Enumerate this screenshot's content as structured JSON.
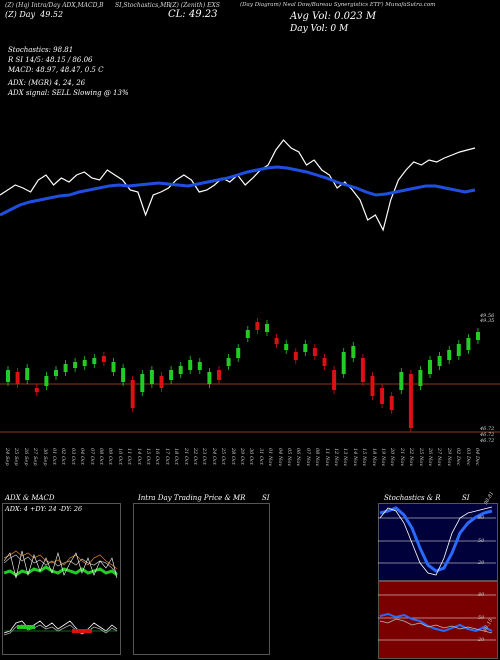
{
  "header": {
    "top_line": [
      "(Z) (Hq) Intra/Day ADX,MACD,B",
      "SI,Stochastics,MR",
      "(Z) (Zenith) EXS",
      "(Day Diagram) Neal Dow/Bureau Synergistics ETF) MunafaSutra.com"
    ],
    "daily_label": "(Z) Day",
    "daily_value": "49.52",
    "close_label": "CL: 49.23",
    "avg_vol": "Avg Vol: 0.023  M",
    "day_vol": "Day Vol: 0   M"
  },
  "indicators": {
    "stoch": "Stochastics: 98.81",
    "rsi": "R        SI 14/5: 48.15 / 86.06",
    "macd": "MACD: 48.97, 48.47, 0.5 C",
    "adx": "ADX:                    (MGR) 4, 24, 26",
    "signal": "ADX  signal: SELL Slowing @ 13%"
  },
  "price_axis": {
    "top": "49.56",
    "top2": "49.35",
    "bottom": "46.72",
    "bottom2": "46.72",
    "bottom3": "46.72"
  },
  "dates": [
    "24 Sep",
    "25 Sep",
    "26 Sep",
    "27 Sep",
    "30 Sep",
    "01 Oct",
    "02 Oct",
    "03 Oct",
    "04 Oct",
    "07 Oct",
    "08 Oct",
    "09 Oct",
    "10 Oct",
    "11 Oct",
    "14 Oct",
    "15 Oct",
    "16 Oct",
    "17 Oct",
    "18 Oct",
    "21 Oct",
    "22 Oct",
    "23 Oct",
    "24 Oct",
    "25 Oct",
    "28 Oct",
    "29 Oct",
    "30 Oct",
    "31 Oct",
    "01 Nov",
    "04 Nov",
    "05 Nov",
    "06 Nov",
    "07 Nov",
    "08 Nov",
    "11 Nov",
    "12 Nov",
    "13 Nov",
    "14 Nov",
    "15 Nov",
    "18 Nov",
    "19 Nov",
    "20 Nov",
    "21 Nov",
    "22 Nov",
    "25 Nov",
    "26 Nov",
    "27 Nov",
    "29 Nov",
    "02 Dec",
    "03 Dec",
    "04 Dec"
  ],
  "panels": {
    "adx_title": "ADX  & MACD",
    "adx_values": "ADX: 4  +DY: 24  -DY: 26",
    "intra_title": "Intra  Day Trading Price  & MR",
    "intra_title2": "SI",
    "stoch_title": "Stochastics & R",
    "stoch_title2": "SI",
    "stoch_ticks": [
      "80",
      "50",
      "20"
    ],
    "rsi_ticks": [
      "80",
      "50",
      "20"
    ],
    "stoch_value": "98.81",
    "rsi_value": "48.15"
  },
  "colors": {
    "bull": "#22cc22",
    "bear": "#dd1111",
    "ma": "#1f4fe0",
    "hline": "#8b3a0f"
  }
}
